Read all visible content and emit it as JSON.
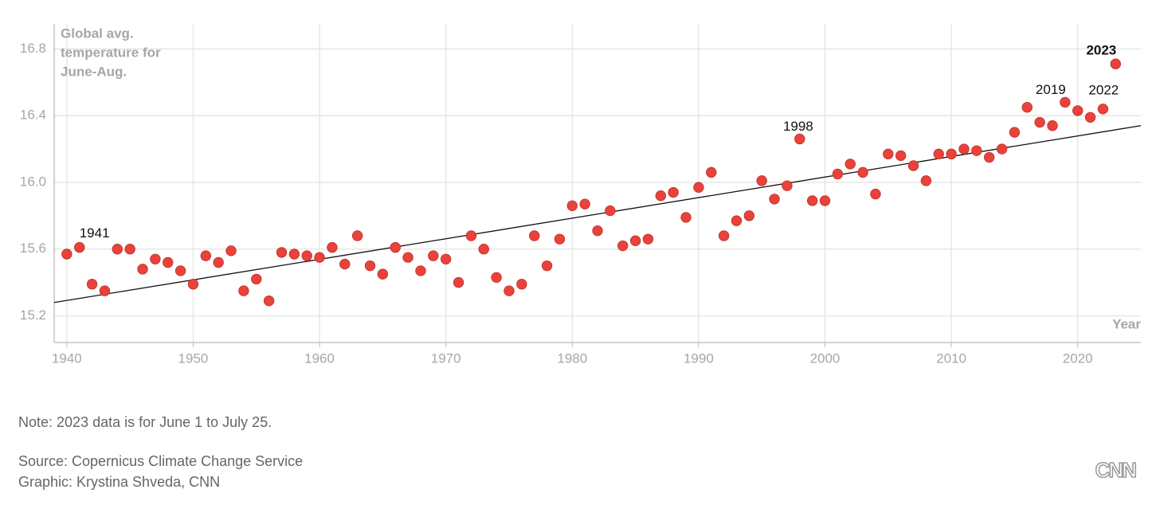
{
  "chart_data": {
    "type": "scatter",
    "y_label": [
      "Global avg.",
      "temperature for",
      "June-Aug."
    ],
    "x_label": "Year",
    "x": [
      1940,
      1941,
      1942,
      1943,
      1944,
      1945,
      1946,
      1947,
      1948,
      1949,
      1950,
      1951,
      1952,
      1953,
      1954,
      1955,
      1956,
      1957,
      1958,
      1959,
      1960,
      1961,
      1962,
      1963,
      1964,
      1965,
      1966,
      1967,
      1968,
      1969,
      1970,
      1971,
      1972,
      1973,
      1974,
      1975,
      1976,
      1977,
      1978,
      1979,
      1980,
      1981,
      1982,
      1983,
      1984,
      1985,
      1986,
      1987,
      1988,
      1989,
      1990,
      1991,
      1992,
      1993,
      1994,
      1995,
      1996,
      1997,
      1998,
      1999,
      2000,
      2001,
      2002,
      2003,
      2004,
      2005,
      2006,
      2007,
      2008,
      2009,
      2010,
      2011,
      2012,
      2013,
      2014,
      2015,
      2016,
      2017,
      2018,
      2019,
      2020,
      2021,
      2022,
      2023
    ],
    "series": [
      {
        "color": "#e8423a",
        "values": [
          15.57,
          15.61,
          15.39,
          15.35,
          15.6,
          15.6,
          15.48,
          15.54,
          15.52,
          15.47,
          15.39,
          15.56,
          15.52,
          15.59,
          15.35,
          15.42,
          15.29,
          15.58,
          15.57,
          15.56,
          15.55,
          15.61,
          15.51,
          15.68,
          15.5,
          15.45,
          15.61,
          15.55,
          15.47,
          15.56,
          15.54,
          15.4,
          15.68,
          15.6,
          15.43,
          15.35,
          15.39,
          15.68,
          15.5,
          15.66,
          15.86,
          15.87,
          15.71,
          15.83,
          15.62,
          15.65,
          15.66,
          15.92,
          15.94,
          15.79,
          15.97,
          16.06,
          15.68,
          15.77,
          15.8,
          16.01,
          15.9,
          15.98,
          16.26,
          15.89,
          15.89,
          16.05,
          16.11,
          16.06,
          15.93,
          16.17,
          16.16,
          16.1,
          16.01,
          16.17,
          16.17,
          16.2,
          16.19,
          16.15,
          16.2,
          16.3,
          16.45,
          16.36,
          16.34,
          16.48,
          16.43,
          16.39,
          16.44,
          16.71
        ]
      }
    ],
    "trend_line": {
      "x": [
        1939,
        2025
      ],
      "y": [
        15.28,
        16.34
      ],
      "color": "#111"
    },
    "annotations": [
      "1941",
      "1998",
      "2019",
      "2022",
      "2023"
    ],
    "xlim": [
      1939,
      2025
    ],
    "xticks": [
      1940,
      1950,
      1960,
      1970,
      1980,
      1990,
      2000,
      2010,
      2020
    ],
    "ylim": [
      15.04,
      16.95
    ],
    "yticks": [
      15.2,
      15.6,
      {
        "value": 16,
        "label": "16.0"
      },
      16.4,
      16.8
    ],
    "grid": true
  },
  "footer": {
    "note": "Note: 2023 data is for June 1 to July 25.",
    "source": "Source: Copernicus Climate Change Service",
    "credit": "Graphic: Krystina Shveda, CNN",
    "logo": "CNN"
  }
}
